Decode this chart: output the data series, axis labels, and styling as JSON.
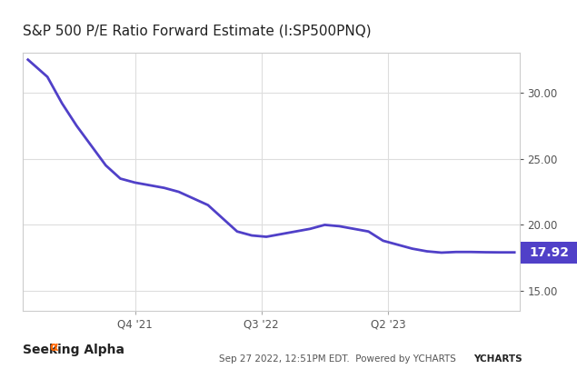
{
  "title": "S&P 500 P/E Ratio Forward Estimate (I:SP500PNQ)",
  "title_fontsize": 11,
  "line_color": "#5040c8",
  "line_width": 2.0,
  "background_color": "#ffffff",
  "plot_bg_color": "#ffffff",
  "grid_color": "#dddddd",
  "yticks": [
    15.0,
    20.0,
    25.0,
    30.0
  ],
  "ylim": [
    13.5,
    33.0
  ],
  "xtick_labels": [
    "Q4 '21",
    "Q3 '22",
    "Q2 '23"
  ],
  "xtick_positions": [
    0.22,
    0.48,
    0.74
  ],
  "end_label": "17.92",
  "end_label_bg": "#5040c8",
  "end_label_color": "#ffffff",
  "footer_left": "Seeking Alpha",
  "footer_right": "Sep 27 2022, 12:51PM EDT.  Powered by YCHARTS",
  "x": [
    0.0,
    0.04,
    0.07,
    0.1,
    0.13,
    0.16,
    0.19,
    0.22,
    0.25,
    0.28,
    0.31,
    0.34,
    0.37,
    0.4,
    0.43,
    0.46,
    0.49,
    0.52,
    0.55,
    0.58,
    0.61,
    0.64,
    0.67,
    0.7,
    0.73,
    0.76,
    0.79,
    0.82,
    0.85,
    0.88,
    0.91,
    0.94,
    0.97,
    1.0
  ],
  "y": [
    32.5,
    31.2,
    29.2,
    27.5,
    26.0,
    24.5,
    23.5,
    23.2,
    23.0,
    22.8,
    22.5,
    22.0,
    21.5,
    20.5,
    19.5,
    19.2,
    19.1,
    19.3,
    19.5,
    19.7,
    20.0,
    19.9,
    19.7,
    19.5,
    18.8,
    18.5,
    18.2,
    18.0,
    17.9,
    17.95,
    17.95,
    17.93,
    17.92,
    17.92
  ]
}
